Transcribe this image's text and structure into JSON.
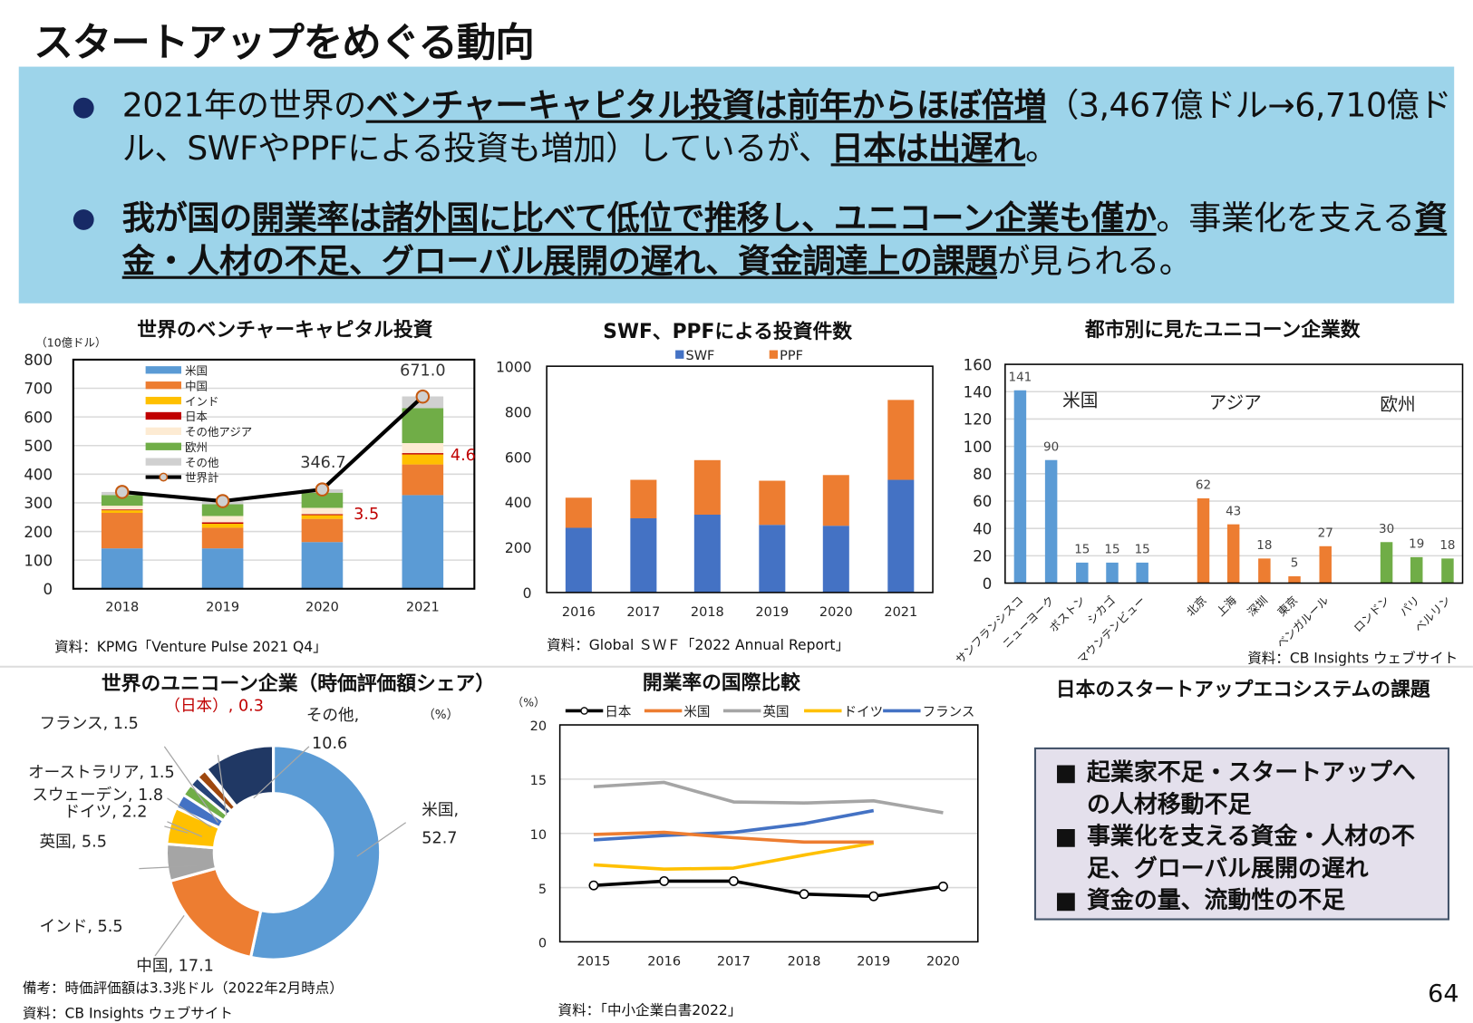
{
  "page_title": "スタートアップをめぐる動向",
  "page_number": "64",
  "summary": {
    "bullet1": [
      "2021年の世界の",
      "ベンチャーキャピタル投資は前年からほぼ倍増",
      "（3,467億ドル→6,710億ドル、SWFやPPFによる投資も増加）しているが、",
      "日本は出遅れ",
      "。"
    ],
    "bullet2": [
      "我が国の",
      "開業率は諸外国に比べて低位で推移し、ユニコーン企業も僅か",
      "。事業化を支える",
      "資金・人材の不足、グローバル展開の遅れ、資金調達上の課題",
      "が見られる。"
    ]
  },
  "vc_chart": {
    "source": "資料：KPMG「Venture Pulse 2021 Q4」"
  },
  "swf_chart": {
    "source": "資料：Global ＳＷＦ「2022 Annual Report」"
  },
  "city_chart": {
    "source": "資料：CB Insights ウェブサイト"
  },
  "donut_chart": {
    "note": "備考：時価評価額は3.3兆ドル（2022年2月時点）",
    "source": "資料：CB Insights ウェブサイト"
  },
  "rate_chart": {
    "source": "資料：「中小企業白書2022」"
  },
  "issues": {
    "title": "日本のスタートアップエコシステムの課題",
    "bullet_glyph": "■",
    "items": [
      "起業家不足・スタートアップへの人材移動不足",
      "事業化を支える資金・人材の不足、グローバル展開の遅れ",
      "資金の量、流動性の不足"
    ]
  },
  "chart_data": [
    {
      "type": "bar",
      "stacked": true,
      "title": "世界のベンチャーキャピタル投資",
      "ylabel": "（10億ドル）",
      "ylim": [
        0,
        800
      ],
      "yticks": [
        0,
        100,
        200,
        300,
        400,
        500,
        600,
        700,
        800
      ],
      "grid": true,
      "legend": "top-left",
      "categories": [
        "2018",
        "2019",
        "2020",
        "2021"
      ],
      "series": [
        {
          "name": "米国",
          "color": "#5b9bd5",
          "values": [
            141,
            141,
            163,
            327
          ]
        },
        {
          "name": "中国",
          "color": "#ed7d31",
          "values": [
            124,
            72,
            81,
            107
          ]
        },
        {
          "name": "インド",
          "color": "#ffc000",
          "values": [
            9,
            14,
            13,
            35
          ]
        },
        {
          "name": "日本",
          "color": "#c00000",
          "values": [
            3,
            5,
            3.5,
            4.6
          ]
        },
        {
          "name": "その他アジア",
          "color": "#fdebd3",
          "values": [
            13,
            22,
            22,
            35
          ]
        },
        {
          "name": "欧州",
          "color": "#70ad47",
          "values": [
            37,
            41,
            53,
            122
          ]
        },
        {
          "name": "その他",
          "color": "#d0d0d0",
          "values": [
            11,
            11,
            12,
            41
          ]
        }
      ],
      "line": {
        "name": "世界計",
        "values": [
          338,
          306,
          346.7,
          671.0
        ]
      },
      "annotations": [
        {
          "text": "671.0",
          "category": "2021",
          "color": "#333333"
        },
        {
          "text": "346.7",
          "category": "2020",
          "color": "#333333"
        },
        {
          "text": "3.5",
          "category": "2020",
          "color": "#c00000"
        },
        {
          "text": "4.6",
          "category": "2021",
          "color": "#c00000"
        }
      ]
    },
    {
      "type": "bar",
      "stacked": true,
      "title": "SWF、PPFによる投資件数",
      "ylim": [
        0,
        1000
      ],
      "yticks": [
        0,
        200,
        400,
        600,
        800,
        1000
      ],
      "grid": false,
      "legend": "top",
      "categories": [
        "2016",
        "2017",
        "2018",
        "2019",
        "2020",
        "2021"
      ],
      "series": [
        {
          "name": "SWF",
          "color": "#4472c4",
          "values": [
            286,
            328,
            344,
            299,
            295,
            498
          ]
        },
        {
          "name": "PPF",
          "color": "#ed7d31",
          "values": [
            133,
            170,
            241,
            195,
            224,
            353
          ]
        }
      ]
    },
    {
      "type": "bar",
      "title": "都市別に見たユニコーン企業数",
      "ylim": [
        0,
        160
      ],
      "yticks": [
        0,
        20,
        40,
        60,
        80,
        100,
        120,
        140,
        160
      ],
      "grid": true,
      "groups": [
        {
          "name": "米国",
          "color": "#5b9bd5",
          "categories": [
            "サンフランシスコ",
            "ニューヨーク",
            "ボストン",
            "シカゴ",
            "マウンテンビュー"
          ],
          "values": [
            141,
            90,
            15,
            15,
            15
          ]
        },
        {
          "name": "アジア",
          "color": "#ed7d31",
          "categories": [
            "北京",
            "上海",
            "深圳",
            "東京",
            "ベンガルール"
          ],
          "values": [
            62,
            43,
            18,
            5,
            27
          ]
        },
        {
          "name": "欧州",
          "color": "#70ad47",
          "categories": [
            "ロンドン",
            "パリ",
            "ベルリン"
          ],
          "values": [
            30,
            19,
            18
          ]
        }
      ]
    },
    {
      "type": "pie",
      "donut": true,
      "title": "世界のユニコーン企業（時価評価額シェア）",
      "unit": "（%）",
      "slices": [
        {
          "label": "米国",
          "value": 52.7,
          "color": "#5b9bd5",
          "text": "米国,",
          "value_text": "52.7"
        },
        {
          "label": "中国",
          "value": 17.1,
          "color": "#ed7d31",
          "text": "中国, 17.1"
        },
        {
          "label": "インド",
          "value": 5.5,
          "color": "#a5a5a5",
          "text": "インド, 5.5"
        },
        {
          "label": "英国",
          "value": 5.5,
          "color": "#ffc000",
          "text": "英国, 5.5"
        },
        {
          "label": "ドイツ",
          "value": 2.2,
          "color": "#4472c4",
          "text": "ドイツ, 2.2"
        },
        {
          "label": "スウェーデン",
          "value": 1.8,
          "color": "#70ad47",
          "text": "スウェーデン, 1.8"
        },
        {
          "label": "オーストラリア",
          "value": 1.5,
          "color": "#264478",
          "text": "オーストラリア, 1.5"
        },
        {
          "label": "フランス",
          "value": 1.5,
          "color": "#9e480e",
          "text": "フランス, 1.5"
        },
        {
          "label": "日本",
          "value": 0.3,
          "color": "#c00000",
          "text": "（日本）, 0.3"
        },
        {
          "label": "その他",
          "value": 10.6,
          "color": "#203864",
          "text": "その他,",
          "value_text": "10.6"
        }
      ]
    },
    {
      "type": "line",
      "title": "開業率の国際比較",
      "ylabel": "（%）",
      "ylim": [
        0,
        20
      ],
      "yticks": [
        0,
        5,
        10,
        15,
        20
      ],
      "grid": true,
      "legend": "top",
      "x": [
        "2015",
        "2016",
        "2017",
        "2018",
        "2019",
        "2020"
      ],
      "series": [
        {
          "name": "日本",
          "color": "#000000",
          "markers": true,
          "values": [
            5.2,
            5.6,
            5.6,
            4.4,
            4.2,
            5.1
          ]
        },
        {
          "name": "米国",
          "color": "#ed7d31",
          "values": [
            9.9,
            10.1,
            9.6,
            9.2,
            9.2,
            null
          ]
        },
        {
          "name": "英国",
          "color": "#a5a5a5",
          "values": [
            14.3,
            14.7,
            12.9,
            12.8,
            13.0,
            11.9
          ]
        },
        {
          "name": "ドイツ",
          "color": "#ffc000",
          "values": [
            7.1,
            6.7,
            6.8,
            8.0,
            9.1,
            null
          ]
        },
        {
          "name": "フランス",
          "color": "#4472c4",
          "values": [
            9.4,
            9.8,
            10.1,
            10.9,
            12.1,
            null
          ]
        }
      ]
    }
  ]
}
